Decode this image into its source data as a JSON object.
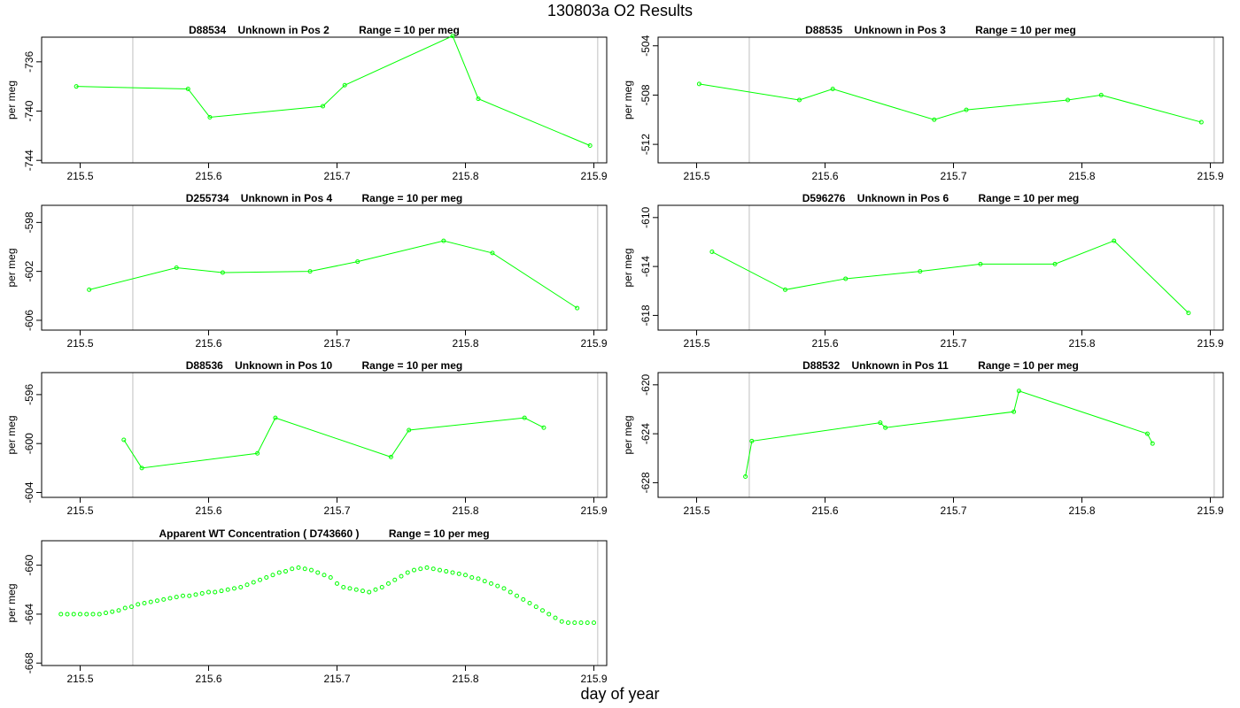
{
  "title": "130803a  O2 Results",
  "xlabel": "day of year",
  "colors": {
    "series": "#00ff00",
    "frame": "#000000",
    "vline": "#c0c0c0"
  },
  "chart_data": [
    {
      "type": "line",
      "title": "D88534    Unknown in Pos 2          Range = 10 per meg",
      "ylabel": "per meg",
      "xlim": [
        215.47,
        215.91
      ],
      "ylim": [
        -744.2,
        -734.0
      ],
      "xticks": [
        "215.5",
        "215.6",
        "215.7",
        "215.8",
        "215.9"
      ],
      "yticks": [
        "-744",
        "-740",
        "-736"
      ],
      "vlines": [
        215.541,
        215.903
      ],
      "x": [
        215.497,
        215.584,
        215.601,
        215.689,
        215.706,
        215.79,
        215.81,
        215.897
      ],
      "y": [
        -738.0,
        -738.2,
        -740.5,
        -739.6,
        -737.9,
        -733.9,
        -739.0,
        -742.8
      ]
    },
    {
      "type": "line",
      "title": "D88535    Unknown in Pos 3          Range = 10 per meg",
      "ylabel": "per meg",
      "xlim": [
        215.47,
        215.91
      ],
      "ylim": [
        -513.5,
        -503.3
      ],
      "xticks": [
        "215.5",
        "215.6",
        "215.7",
        "215.8",
        "215.9"
      ],
      "yticks": [
        "-512",
        "-508",
        "-504"
      ],
      "vlines": [
        215.541,
        215.903
      ],
      "x": [
        215.502,
        215.58,
        215.606,
        215.685,
        215.71,
        215.789,
        215.815,
        215.893
      ],
      "y": [
        -507.1,
        -508.4,
        -507.5,
        -510.0,
        -509.2,
        -508.4,
        -508.0,
        -510.2
      ]
    },
    {
      "type": "line",
      "title": "D255734    Unknown in Pos 4          Range = 10 per meg",
      "ylabel": "per meg",
      "xlim": [
        215.47,
        215.91
      ],
      "ylim": [
        -606.8,
        -596.6
      ],
      "xticks": [
        "215.5",
        "215.6",
        "215.7",
        "215.8",
        "215.9"
      ],
      "yticks": [
        "-606",
        "-602",
        "-598"
      ],
      "vlines": [
        215.541,
        215.903
      ],
      "x": [
        215.507,
        215.575,
        215.611,
        215.679,
        215.716,
        215.783,
        215.821,
        215.887
      ],
      "y": [
        -603.5,
        -601.7,
        -602.1,
        -602.0,
        -601.2,
        -599.5,
        -600.5,
        -605.0
      ]
    },
    {
      "type": "line",
      "title": "D596276    Unknown in Pos 6          Range = 10 per meg",
      "ylabel": "per meg",
      "xlim": [
        215.47,
        215.91
      ],
      "ylim": [
        -619.2,
        -609.0
      ],
      "xticks": [
        "215.5",
        "215.6",
        "215.7",
        "215.8",
        "215.9"
      ],
      "yticks": [
        "-618",
        "-614",
        "-610"
      ],
      "vlines": [
        215.541,
        215.903
      ],
      "x": [
        215.512,
        215.569,
        215.616,
        215.674,
        215.721,
        215.779,
        215.825,
        215.883
      ],
      "y": [
        -612.8,
        -615.9,
        -615.0,
        -614.4,
        -613.8,
        -613.8,
        -611.9,
        -617.8
      ]
    },
    {
      "type": "line",
      "title": "D88536    Unknown in Pos 10          Range = 10 per meg",
      "ylabel": "per meg",
      "xlim": [
        215.47,
        215.91
      ],
      "ylim": [
        -604.4,
        -594.2
      ],
      "xticks": [
        "215.5",
        "215.6",
        "215.7",
        "215.8",
        "215.9"
      ],
      "yticks": [
        "-604",
        "-600",
        "-596"
      ],
      "vlines": [
        215.541,
        215.903
      ],
      "x": [
        215.534,
        215.548,
        215.638,
        215.652,
        215.742,
        215.756,
        215.846,
        215.861
      ],
      "y": [
        -599.7,
        -602.0,
        -600.8,
        -597.9,
        -601.1,
        -598.9,
        -597.9,
        -598.7
      ]
    },
    {
      "type": "line",
      "title": "D88532    Unknown in Pos 11          Range = 10 per meg",
      "ylabel": "per meg",
      "xlim": [
        215.47,
        215.91
      ],
      "ylim": [
        -629.2,
        -619.0
      ],
      "xticks": [
        "215.5",
        "215.6",
        "215.7",
        "215.8",
        "215.9"
      ],
      "yticks": [
        "-628",
        "-624",
        "-620"
      ],
      "vlines": [
        215.541,
        215.903
      ],
      "x": [
        215.538,
        215.543,
        215.643,
        215.647,
        215.747,
        215.751,
        215.851,
        215.855
      ],
      "y": [
        -627.5,
        -624.6,
        -623.1,
        -623.5,
        -622.2,
        -620.5,
        -624.0,
        -624.8
      ]
    },
    {
      "type": "scatter",
      "title": "Apparent WT Concentration ( D743660 )          Range = 10 per meg",
      "ylabel": "per meg",
      "xlim": [
        215.47,
        215.91
      ],
      "ylim": [
        -668.2,
        -658.0
      ],
      "xticks": [
        "215.5",
        "215.6",
        "215.7",
        "215.8",
        "215.9"
      ],
      "yticks": [
        "-668",
        "-664",
        "-660"
      ],
      "vlines": [
        215.541,
        215.903
      ],
      "x": [
        215.485,
        215.49,
        215.495,
        215.5,
        215.505,
        215.51,
        215.515,
        215.52,
        215.525,
        215.53,
        215.535,
        215.54,
        215.545,
        215.55,
        215.555,
        215.56,
        215.565,
        215.57,
        215.575,
        215.58,
        215.585,
        215.59,
        215.595,
        215.6,
        215.605,
        215.61,
        215.615,
        215.62,
        215.625,
        215.63,
        215.635,
        215.64,
        215.645,
        215.65,
        215.655,
        215.66,
        215.665,
        215.67,
        215.675,
        215.68,
        215.685,
        215.69,
        215.695,
        215.7,
        215.705,
        215.71,
        215.715,
        215.72,
        215.725,
        215.73,
        215.735,
        215.74,
        215.745,
        215.75,
        215.755,
        215.76,
        215.765,
        215.77,
        215.775,
        215.78,
        215.785,
        215.79,
        215.795,
        215.8,
        215.805,
        215.81,
        215.815,
        215.82,
        215.825,
        215.83,
        215.835,
        215.84,
        215.845,
        215.85,
        215.855,
        215.86,
        215.865,
        215.87,
        215.875,
        215.88,
        215.885,
        215.89,
        215.895,
        215.9
      ],
      "y": [
        -664.0,
        -664.0,
        -664.0,
        -664.0,
        -664.0,
        -664.0,
        -664.0,
        -663.9,
        -663.8,
        -663.7,
        -663.5,
        -663.4,
        -663.2,
        -663.1,
        -663.0,
        -662.9,
        -662.8,
        -662.7,
        -662.6,
        -662.5,
        -662.5,
        -662.4,
        -662.3,
        -662.2,
        -662.2,
        -662.1,
        -662.0,
        -661.9,
        -661.8,
        -661.6,
        -661.4,
        -661.2,
        -661.0,
        -660.8,
        -660.6,
        -660.5,
        -660.3,
        -660.2,
        -660.3,
        -660.4,
        -660.6,
        -660.8,
        -661.0,
        -661.5,
        -661.8,
        -661.9,
        -662.0,
        -662.1,
        -662.2,
        -662.0,
        -661.8,
        -661.5,
        -661.2,
        -660.9,
        -660.6,
        -660.4,
        -660.3,
        -660.2,
        -660.3,
        -660.4,
        -660.5,
        -660.6,
        -660.7,
        -660.8,
        -661.0,
        -661.1,
        -661.3,
        -661.5,
        -661.7,
        -661.9,
        -662.2,
        -662.5,
        -662.8,
        -663.1,
        -663.4,
        -663.7,
        -664.0,
        -664.3,
        -664.6,
        -664.7,
        -664.7,
        -664.7,
        -664.7,
        -664.7
      ]
    }
  ]
}
